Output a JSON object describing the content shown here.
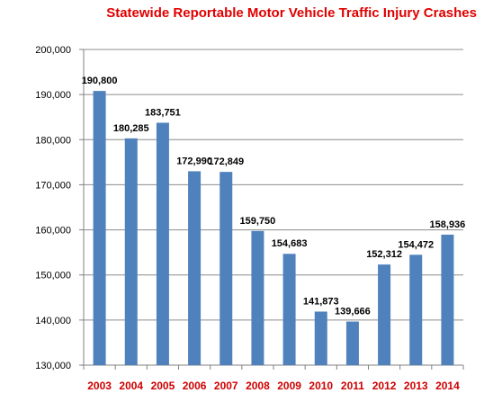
{
  "chart_data": {
    "type": "bar",
    "title": "Statewide Reportable Motor Vehicle Traffic Injury Crashes",
    "xlabel": "",
    "ylabel": "",
    "categories": [
      "2003",
      "2004",
      "2005",
      "2006",
      "2007",
      "2008",
      "2009",
      "2010",
      "2011",
      "2012",
      "2013",
      "2014"
    ],
    "values": [
      190800,
      180285,
      183751,
      172990,
      172849,
      159750,
      154683,
      141873,
      139666,
      152312,
      154472,
      158936
    ],
    "data_labels": [
      "190,800",
      "180,285",
      "183,751",
      "172,990",
      "172,849",
      "159,750",
      "154,683",
      "141,873",
      "139,666",
      "152,312",
      "154,472",
      "158,936"
    ],
    "ylim": [
      130000,
      200000
    ],
    "yticks": [
      130000,
      140000,
      150000,
      160000,
      170000,
      180000,
      190000,
      200000
    ],
    "ytick_labels": [
      "130,000",
      "140,000",
      "150,000",
      "160,000",
      "170,000",
      "180,000",
      "190,000",
      "200,000"
    ],
    "grid": true,
    "legend": "none",
    "colors": {
      "bar": "#4f81bd",
      "title": "#e00000",
      "category_label": "#d00000",
      "grid": "#8c8c8c",
      "axis": "#808080",
      "text": "#000000"
    }
  }
}
